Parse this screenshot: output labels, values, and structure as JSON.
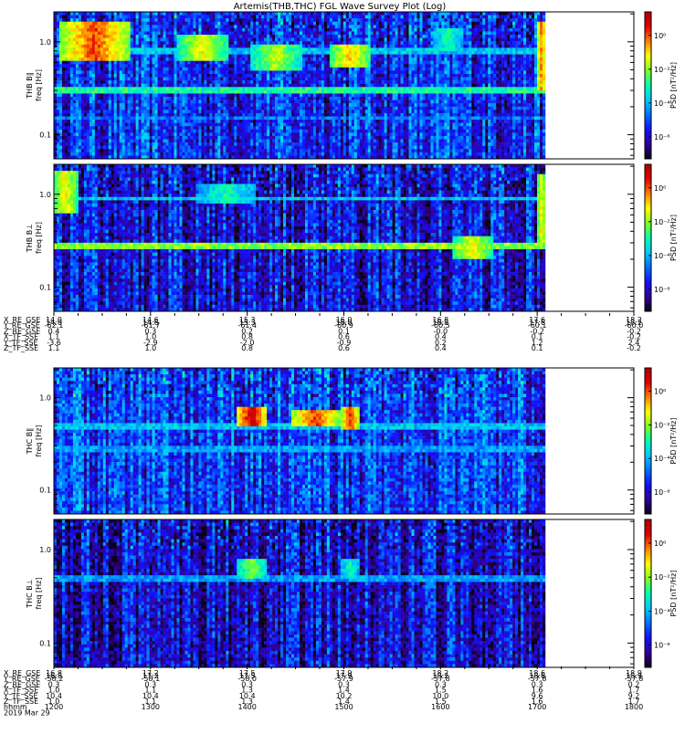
{
  "chart_data": {
    "type": "heatmap",
    "title": "Artemis(THB,THC) FGL Wave Survey Plot (Log)",
    "colorbar": {
      "label": "PSD [nT²/Hz]",
      "ticks": [
        "10⁰",
        "10⁻²",
        "10⁻⁴",
        "10⁻⁶"
      ],
      "colors": [
        "#0b0018",
        "#30009a",
        "#1010ff",
        "#0070ff",
        "#00c8ff",
        "#00ffb0",
        "#80ff20",
        "#ffff00",
        "#ff8000",
        "#e00000",
        "#b00000"
      ]
    },
    "freq_ticks": [
      "1.0",
      "0.1"
    ],
    "y_scale": "log",
    "ylim_hz": [
      0.055,
      2.1
    ],
    "panels": [
      {
        "id": "thb_par",
        "sat": "THB",
        "label1": "THB B∥",
        "label2": "freq [Hz]",
        "bg_level": 0.22,
        "bands": [
          {
            "f": 0.3,
            "level": 0.5
          },
          {
            "f": 0.15,
            "level": 0.3
          },
          {
            "f": 0.8,
            "level": 0.4
          }
        ],
        "bursts": [
          {
            "t": 0.08,
            "w": 0.07,
            "fl": 0.6,
            "fh": 1.6,
            "level": 0.85
          },
          {
            "t": 0.3,
            "w": 0.05,
            "fl": 0.6,
            "fh": 1.2,
            "level": 0.7
          },
          {
            "t": 0.45,
            "w": 0.05,
            "fl": 0.5,
            "fh": 0.9,
            "level": 0.65
          },
          {
            "t": 0.6,
            "w": 0.04,
            "fl": 0.55,
            "fh": 0.9,
            "level": 0.75
          },
          {
            "t": 0.8,
            "w": 0.03,
            "fl": 0.8,
            "fh": 1.4,
            "level": 0.5
          },
          {
            "t": 0.99,
            "w": 0.01,
            "fl": 0.3,
            "fh": 1.6,
            "level": 0.8
          }
        ]
      },
      {
        "id": "thb_perp",
        "sat": "THB",
        "label1": "THB B⊥",
        "label2": "freq [Hz]",
        "bg_level": 0.17,
        "bands": [
          {
            "f": 0.28,
            "level": 0.6
          },
          {
            "f": 0.9,
            "level": 0.4
          }
        ],
        "bursts": [
          {
            "t": 0.02,
            "w": 0.03,
            "fl": 0.6,
            "fh": 1.8,
            "level": 0.7
          },
          {
            "t": 0.35,
            "w": 0.06,
            "fl": 0.8,
            "fh": 1.3,
            "level": 0.5
          },
          {
            "t": 0.85,
            "w": 0.04,
            "fl": 0.2,
            "fh": 0.35,
            "level": 0.7
          },
          {
            "t": 0.99,
            "w": 0.01,
            "fl": 0.3,
            "fh": 1.6,
            "level": 0.7
          }
        ]
      },
      {
        "id": "thc_par",
        "sat": "THC",
        "label1": "THC B∥",
        "label2": "freq [Hz]",
        "bg_level": 0.24,
        "bands": [
          {
            "f": 0.5,
            "level": 0.4
          },
          {
            "f": 0.27,
            "level": 0.35
          }
        ],
        "bursts": [
          {
            "t": 0.4,
            "w": 0.03,
            "fl": 0.5,
            "fh": 0.8,
            "level": 0.95
          },
          {
            "t": 0.53,
            "w": 0.05,
            "fl": 0.5,
            "fh": 0.75,
            "level": 0.85
          },
          {
            "t": 0.6,
            "w": 0.02,
            "fl": 0.45,
            "fh": 0.8,
            "level": 0.85
          }
        ]
      },
      {
        "id": "thc_perp",
        "sat": "THC",
        "label1": "THC B⊥",
        "label2": "freq [Hz]",
        "bg_level": 0.15,
        "bands": [
          {
            "f": 0.5,
            "level": 0.35
          }
        ],
        "bursts": [
          {
            "t": 0.4,
            "w": 0.03,
            "fl": 0.5,
            "fh": 0.8,
            "level": 0.6
          },
          {
            "t": 0.6,
            "w": 0.02,
            "fl": 0.5,
            "fh": 0.8,
            "level": 0.5
          }
        ]
      }
    ],
    "ephemeris": [
      {
        "x_ticks": [
          "14.0",
          "14.6",
          "15.3",
          "16.0",
          "16.8",
          "17.6",
          "18.2"
        ],
        "rows": [
          {
            "label": "X_RE_GSE",
            "values": [
              "14.0",
              "14.6",
              "15.3",
              "16.0",
              "16.8",
              "17.6",
              "18.2"
            ]
          },
          {
            "label": "Y_RE_GSE",
            "values": [
              "-62.1",
              "-61.7",
              "-61.4",
              "-60.9",
              "-60.5",
              "-60.1",
              "-60.0"
            ]
          },
          {
            "label": "Z_RE_GSE",
            "values": [
              "0.4",
              "0.3",
              "0.2",
              "0.1",
              "-0.0",
              "-0.2",
              "-0.2"
            ]
          },
          {
            "label": "X_TF_SSE",
            "values": [
              "1.1",
              "1.0",
              "0.8",
              "0.6",
              "0.4",
              "0.1",
              "-0.2"
            ]
          },
          {
            "label": "Y_TF_SSE",
            "values": [
              "-3.6",
              "-2.9",
              "-2.0",
              "-0.9",
              "0.2",
              "1.2",
              "2.4"
            ]
          },
          {
            "label": "Z_TF_SSE",
            "values": [
              "1.1",
              "1.0",
              "0.8",
              "0.6",
              "0.4",
              "0.1",
              "-0.2"
            ]
          }
        ]
      },
      {
        "x_ticks": [
          "16.8",
          "17.2",
          "17.5",
          "17.9",
          "18.2",
          "18.6",
          "18.9"
        ],
        "rows": [
          {
            "label": "X_RE_GSE",
            "values": [
              "16.8",
              "17.2",
              "17.5",
              "17.9",
              "18.2",
              "18.6",
              "18.9"
            ]
          },
          {
            "label": "Y_RE_GSE",
            "values": [
              "-58.2",
              "-58.1",
              "-58.0",
              "-57.9",
              "-57.8",
              "-57.8",
              "-57.8"
            ]
          },
          {
            "label": "Z_RE_GSE",
            "values": [
              "0.3",
              "0.3",
              "0.3",
              "0.3",
              "0.3",
              "0.3",
              "0.2"
            ]
          },
          {
            "label": "X_TF_SSE",
            "values": [
              "1.0",
              "1.1",
              "1.3",
              "1.4",
              "1.5",
              "1.6",
              "1.7"
            ]
          },
          {
            "label": "Y_TF_SSE",
            "values": [
              "10.4",
              "10.4",
              "10.4",
              "10.2",
              "10.0",
              "9.6",
              "9.2"
            ]
          },
          {
            "label": "Z_TF_SSE",
            "values": [
              "1.0",
              "1.1",
              "1.3",
              "1.4",
              "1.5",
              "1.6",
              "1.7"
            ]
          },
          {
            "label": "hhmm",
            "values": [
              "1200",
              "1300",
              "1400",
              "1500",
              "1600",
              "1700",
              "1800"
            ]
          }
        ],
        "date": "2019 Mar 29"
      }
    ]
  }
}
